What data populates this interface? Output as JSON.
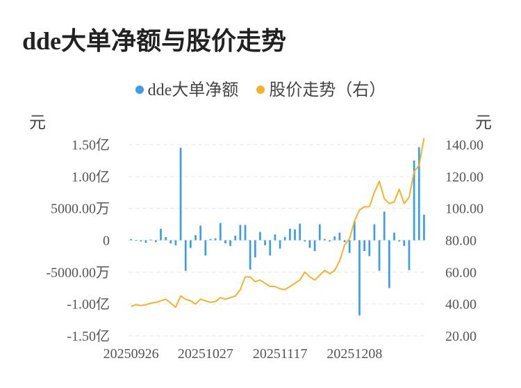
{
  "page_title": "dde大单净额与股价走势",
  "legend": [
    {
      "label": "dde大单净额",
      "color": "#3a9ee8"
    },
    {
      "label": "股价走势（右）",
      "color": "#f5b323"
    }
  ],
  "units": {
    "left": "元",
    "right": "元"
  },
  "chart_data": {
    "type": "bar+line",
    "grid": true,
    "legend_position": "top-center",
    "left_axis": {
      "ticks": [
        {
          "value": 150000000.0,
          "label": "1.50亿"
        },
        {
          "value": 100000000.0,
          "label": "1.00亿"
        },
        {
          "value": 50000000.0,
          "label": "5000.00万"
        },
        {
          "value": 0,
          "label": "0"
        },
        {
          "value": -50000000.0,
          "label": "-5000.00万"
        },
        {
          "value": -100000000.0,
          "label": "-1.00亿"
        },
        {
          "value": -150000000.0,
          "label": "-1.50亿"
        }
      ],
      "ylim": [
        -150000000.0,
        150000000.0
      ]
    },
    "right_axis": {
      "ticks": [
        {
          "value": 140,
          "label": "140.00"
        },
        {
          "value": 120,
          "label": "120.00"
        },
        {
          "value": 100,
          "label": "100.00"
        },
        {
          "value": 80,
          "label": "80.00"
        },
        {
          "value": 60,
          "label": "60.00"
        },
        {
          "value": 40,
          "label": "40.00"
        },
        {
          "value": 20,
          "label": "20.00"
        }
      ],
      "ylim": [
        20,
        140
      ]
    },
    "x_tick_labels": [
      {
        "index": 0,
        "label": "20250926"
      },
      {
        "index": 15,
        "label": "20251027"
      },
      {
        "index": 30,
        "label": "20251117"
      },
      {
        "index": 45,
        "label": "20251208"
      }
    ],
    "series": [
      {
        "name": "dde大单净额",
        "type": "bar",
        "axis": "left",
        "values": [
          2000000,
          -1000000,
          -2000000,
          -4000000,
          1000000,
          -3000000,
          18000000,
          5000000,
          -5000000,
          -8000000,
          145000000,
          -48000000,
          -12000000,
          8000000,
          23000000,
          -24000000,
          2000000,
          3000000,
          27000000,
          -5000000,
          -9000000,
          7000000,
          24000000,
          24000000,
          -46000000,
          -27000000,
          13000000,
          -8000000,
          -24000000,
          9000000,
          -13000000,
          5000000,
          18000000,
          17000000,
          26000000,
          -2000000,
          -12000000,
          -17000000,
          25000000,
          2000000,
          -2000000,
          6000000,
          12000000,
          -3000000,
          -20000000,
          30000000,
          -118000000,
          -17000000,
          -25000000,
          25000000,
          -48000000,
          45000000,
          -75000000,
          12000000,
          -2000000,
          -9000000,
          -47000000,
          125000000,
          146000000,
          40000000
        ]
      },
      {
        "name": "股价走势",
        "type": "line",
        "axis": "right",
        "values": [
          38.5,
          39.5,
          39,
          39.5,
          40.5,
          41,
          42,
          43,
          40.5,
          38,
          45,
          43,
          42,
          40,
          43,
          42,
          41,
          41.5,
          44,
          43,
          44,
          45,
          49,
          57,
          57,
          54,
          55,
          53,
          51,
          51,
          49.5,
          49,
          51,
          53,
          55,
          60,
          57,
          55,
          58,
          61,
          59,
          61,
          67,
          77,
          81,
          92,
          99,
          101,
          101,
          110,
          117,
          106,
          103,
          104,
          112,
          103,
          107,
          123,
          127,
          144
        ]
      }
    ]
  }
}
